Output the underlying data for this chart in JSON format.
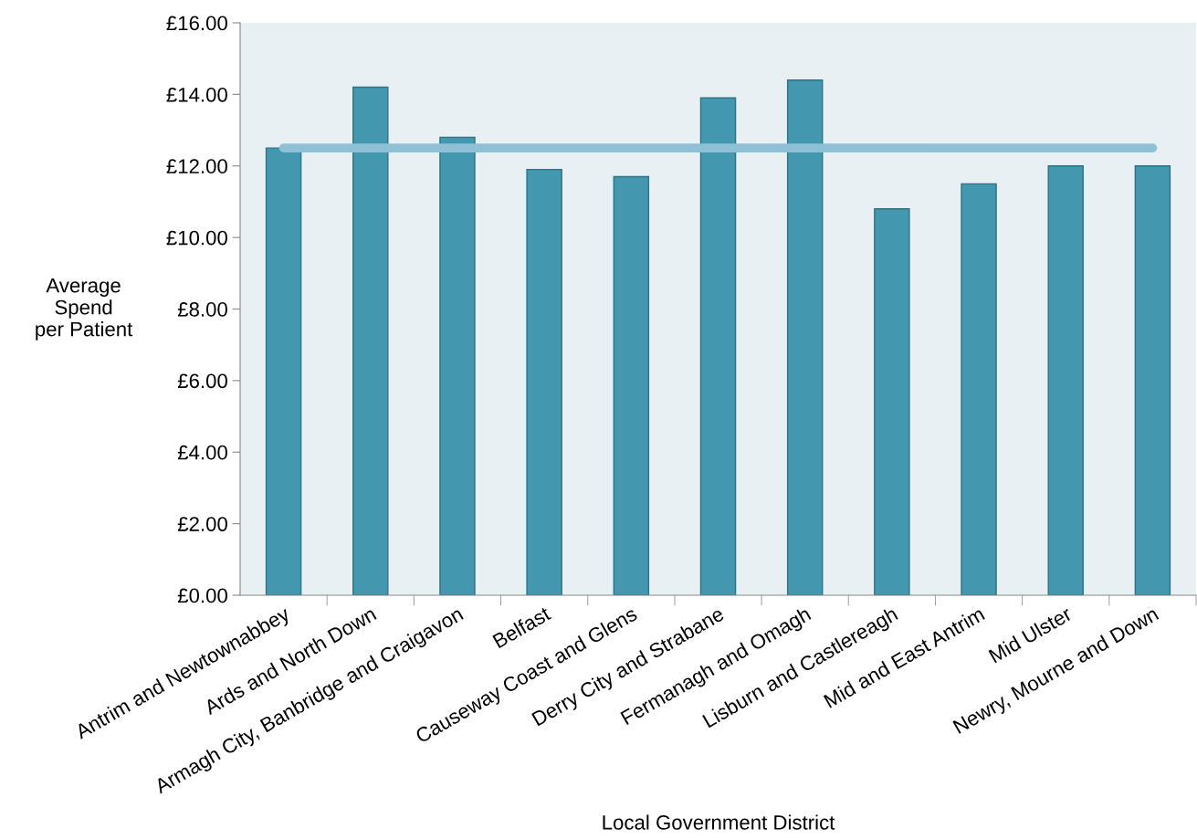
{
  "chart_data": {
    "type": "bar",
    "xlabel": "Local Government District",
    "ylabel": "Average\nSpend\nper Patient",
    "categories": [
      "Antrim and Newtownabbey",
      "Ards and North Down",
      "Armagh City, Banbridge and Craigavon",
      "Belfast",
      "Causeway Coast and Glens",
      "Derry City and Strabane",
      "Fermanagh and Omagh",
      "Lisburn and Castlereagh",
      "Mid and East Antrim",
      "Mid Ulster",
      "Newry, Mourne and Down"
    ],
    "series": [
      {
        "color": "#4398b0",
        "values": [
          12.5,
          14.2,
          12.8,
          11.9,
          11.7,
          13.9,
          14.4,
          10.8,
          11.5,
          12.0,
          12.0
        ]
      },
      {
        "type": "line",
        "color": "#8fc1d6",
        "values": [
          12.5,
          12.5,
          12.5,
          12.5,
          12.5,
          12.5,
          12.5,
          12.5,
          12.5,
          12.5,
          12.5
        ]
      }
    ],
    "ylim": [
      0,
      16
    ],
    "yticks": [
      {
        "value": 0,
        "label": "£0.00"
      },
      {
        "value": 2,
        "label": "£2.00"
      },
      {
        "value": 4,
        "label": "£4.00"
      },
      {
        "value": 6,
        "label": "£6.00"
      },
      {
        "value": 8,
        "label": "£8.00"
      },
      {
        "value": 10,
        "label": "£10.00"
      },
      {
        "value": 12,
        "label": "£12.00"
      },
      {
        "value": 14,
        "label": "£14.00"
      },
      {
        "value": 16,
        "label": "£16.00"
      }
    ],
    "grid": false
  }
}
